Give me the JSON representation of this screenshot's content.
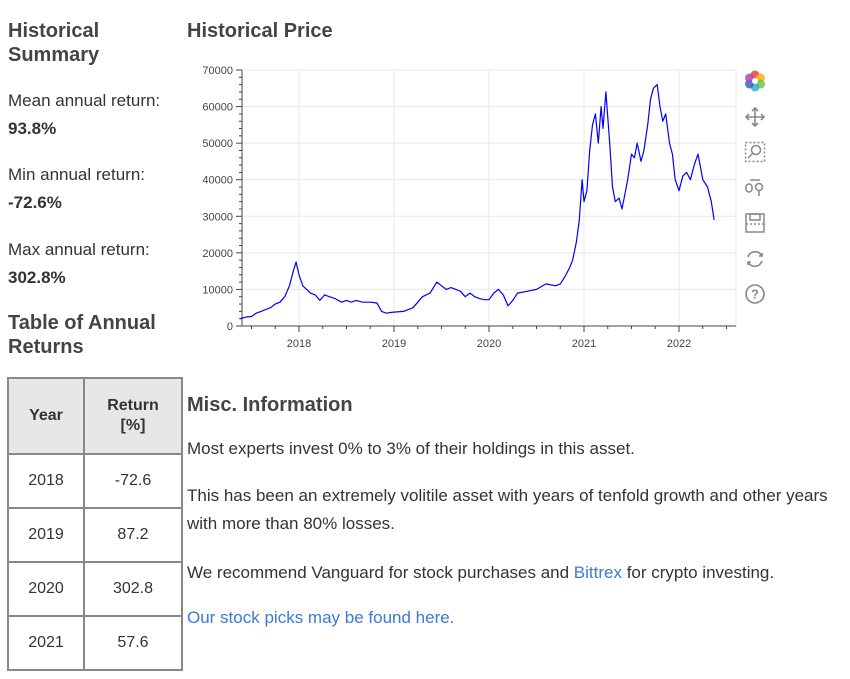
{
  "summary": {
    "title": "Historical Summary",
    "mean_label": "Mean annual return:",
    "mean_value": "93.8%",
    "min_label": "Min annual return:",
    "min_value": "-72.6%",
    "max_label": "Max annual return:",
    "max_value": "302.8%"
  },
  "returns_table": {
    "title": "Table of Annual Returns",
    "headers": [
      "Year",
      "Return [%]"
    ],
    "rows": [
      {
        "year": "2018",
        "ret": "-72.6"
      },
      {
        "year": "2019",
        "ret": "87.2"
      },
      {
        "year": "2020",
        "ret": "302.8"
      },
      {
        "year": "2021",
        "ret": "57.6"
      }
    ]
  },
  "price": {
    "title": "Historical Price"
  },
  "toolbar": {
    "icons": [
      "bokeh-logo-icon",
      "pan-icon",
      "box-zoom-icon",
      "wheel-zoom-icon",
      "save-icon",
      "reset-icon",
      "help-icon"
    ]
  },
  "misc": {
    "title": "Misc. Information",
    "p1": "Most experts invest 0% to 3% of their holdings in this asset.",
    "p2": "This has been an extremely volitile asset with years of tenfold growth and other years with more than 80% losses.",
    "p3_pre": "We recommend Vanguard for stock purchases and ",
    "p3_link": "Bittrex",
    "p3_post": " for crypto investing.",
    "p4_link": "Our stock picks may be found here."
  },
  "colors": {
    "line": "#0000ff",
    "link": "#3a7bd5"
  },
  "chart_data": {
    "type": "line",
    "title": "Historical Price",
    "xlabel": "",
    "ylabel": "",
    "xlim": [
      2017.4,
      2022.6
    ],
    "ylim": [
      0,
      70000
    ],
    "yticks": [
      0,
      10000,
      20000,
      30000,
      40000,
      50000,
      60000,
      70000
    ],
    "xticks": [
      2018,
      2019,
      2020,
      2021,
      2022
    ],
    "grid": true,
    "series": [
      {
        "x": [
          2017.38,
          2017.45,
          2017.5,
          2017.55,
          2017.6,
          2017.65,
          2017.7,
          2017.75,
          2017.8,
          2017.85,
          2017.9,
          2017.94,
          2017.97,
          2018.0,
          2018.04,
          2018.08,
          2018.12,
          2018.17,
          2018.22,
          2018.27,
          2018.32,
          2018.38,
          2018.45,
          2018.5,
          2018.55,
          2018.6,
          2018.67,
          2018.75,
          2018.82,
          2018.87,
          2018.92,
          2018.96,
          2019.0,
          2019.1,
          2019.2,
          2019.3,
          2019.38,
          2019.45,
          2019.5,
          2019.55,
          2019.6,
          2019.65,
          2019.7,
          2019.75,
          2019.8,
          2019.85,
          2019.9,
          2019.95,
          2020.0,
          2020.05,
          2020.1,
          2020.15,
          2020.2,
          2020.25,
          2020.3,
          2020.4,
          2020.5,
          2020.6,
          2020.7,
          2020.75,
          2020.8,
          2020.85,
          2020.88,
          2020.92,
          2020.95,
          2020.98,
          2021.0,
          2021.03,
          2021.06,
          2021.09,
          2021.12,
          2021.15,
          2021.18,
          2021.2,
          2021.23,
          2021.27,
          2021.3,
          2021.33,
          2021.37,
          2021.4,
          2021.43,
          2021.46,
          2021.5,
          2021.53,
          2021.56,
          2021.6,
          2021.63,
          2021.67,
          2021.7,
          2021.73,
          2021.77,
          2021.8,
          2021.83,
          2021.86,
          2021.9,
          2021.93,
          2021.96,
          2022.0,
          2022.04,
          2022.08,
          2022.12,
          2022.16,
          2022.2,
          2022.25,
          2022.3,
          2022.34,
          2022.37
        ],
        "values": [
          2000,
          2500,
          2600,
          3500,
          4000,
          4500,
          5000,
          6000,
          6500,
          8000,
          11000,
          15000,
          17500,
          14000,
          11000,
          10000,
          9000,
          8500,
          7000,
          8500,
          8000,
          7500,
          6500,
          7000,
          6500,
          7000,
          6500,
          6500,
          6300,
          4000,
          3500,
          3700,
          3800,
          4000,
          5000,
          8000,
          9000,
          12000,
          11000,
          10000,
          10500,
          10000,
          9500,
          8000,
          9000,
          8000,
          7500,
          7200,
          7200,
          9000,
          10000,
          8500,
          5500,
          7000,
          9000,
          9500,
          10000,
          11500,
          11000,
          11500,
          13500,
          16000,
          18000,
          23000,
          29000,
          40000,
          34000,
          37000,
          48000,
          55000,
          58000,
          50000,
          60000,
          54000,
          64000,
          50000,
          38000,
          34000,
          35000,
          32000,
          36000,
          40000,
          47000,
          46000,
          50000,
          45000,
          48000,
          55000,
          62000,
          65000,
          66000,
          60000,
          56000,
          58000,
          50000,
          47000,
          40000,
          37000,
          41000,
          42000,
          40000,
          44000,
          47000,
          40000,
          38000,
          34000,
          29000
        ]
      }
    ]
  }
}
